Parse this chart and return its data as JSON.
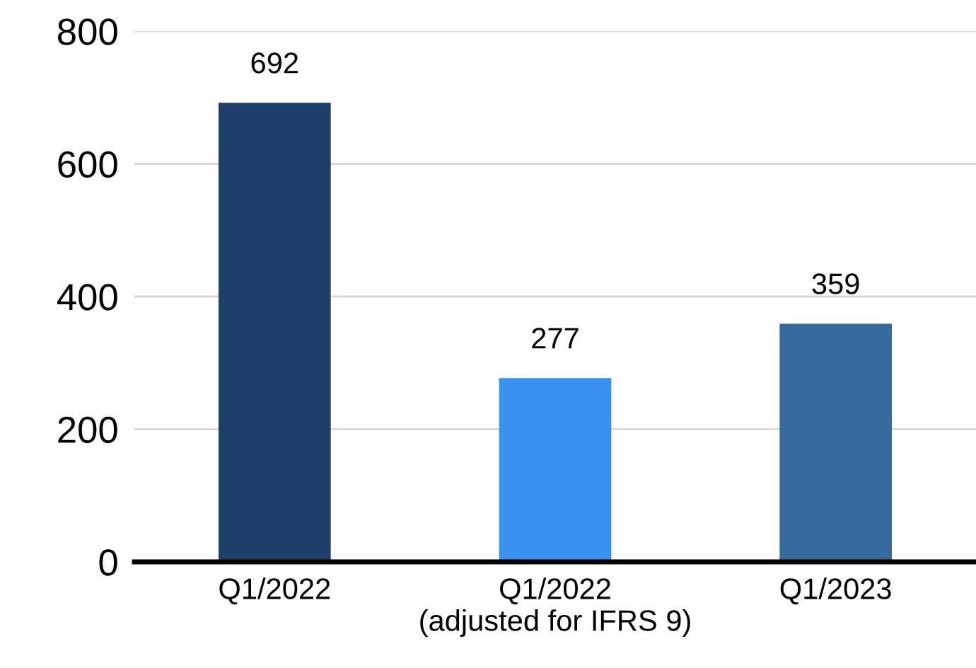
{
  "chart_data": {
    "type": "bar",
    "categories": [
      "Q1/2022",
      "Q1/2022\n(adjusted for IFRS 9)",
      "Q1/2023"
    ],
    "values": [
      692,
      277,
      359
    ],
    "colors": [
      "#1f3f6b",
      "#3a92f0",
      "#36699c"
    ],
    "ylim": [
      0,
      800
    ],
    "yticks": [
      0,
      200,
      400,
      600,
      800
    ],
    "grid": "y",
    "data_labels": true
  }
}
